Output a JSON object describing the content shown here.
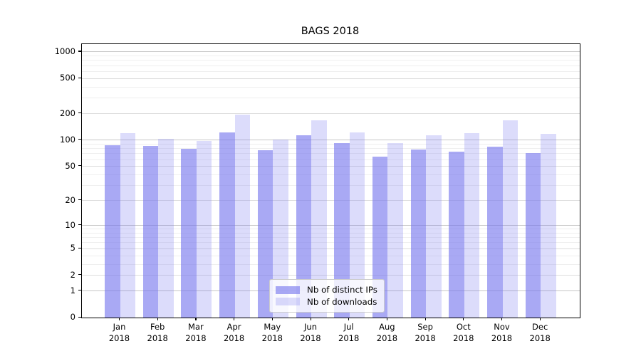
{
  "figure": {
    "title": "BAGS 2018",
    "background": "#ffffff"
  },
  "chart_data": {
    "type": "bar",
    "title": "BAGS 2018",
    "categories": [
      "Jan",
      "Feb",
      "Mar",
      "Apr",
      "May",
      "Jun",
      "Jul",
      "Aug",
      "Sep",
      "Oct",
      "Nov",
      "Dec"
    ],
    "x_year_label": "2018",
    "series": [
      {
        "name": "Nb of distinct IPs",
        "color": "rgba(119,119,238,0.63)",
        "values": [
          88,
          85,
          80,
          122,
          76,
          113,
          92,
          65,
          78,
          74,
          84,
          71
        ]
      },
      {
        "name": "Nb of downloads",
        "color": "rgba(119,119,238,0.26)",
        "values": [
          120,
          103,
          98,
          195,
          102,
          168,
          123,
          92,
          113,
          120,
          168,
          118
        ]
      }
    ],
    "yscale": "log1p",
    "y_ticks": [
      0,
      1,
      2,
      5,
      10,
      20,
      50,
      100,
      200,
      500,
      1000
    ],
    "ylim": [
      0,
      1225
    ],
    "grid": "on",
    "legend_position": "lower-center"
  },
  "legend": {
    "items": [
      {
        "label": "Nb of distinct IPs",
        "color": "rgba(119,119,238,0.63)"
      },
      {
        "label": "Nb of downloads",
        "color": "rgba(119,119,238,0.26)"
      }
    ]
  },
  "colors": {
    "grid_major": "#c6c6c6",
    "grid_minor": "#dddddd",
    "grid_subminor": "#efefef",
    "axis": "#000000",
    "text": "#000000"
  }
}
